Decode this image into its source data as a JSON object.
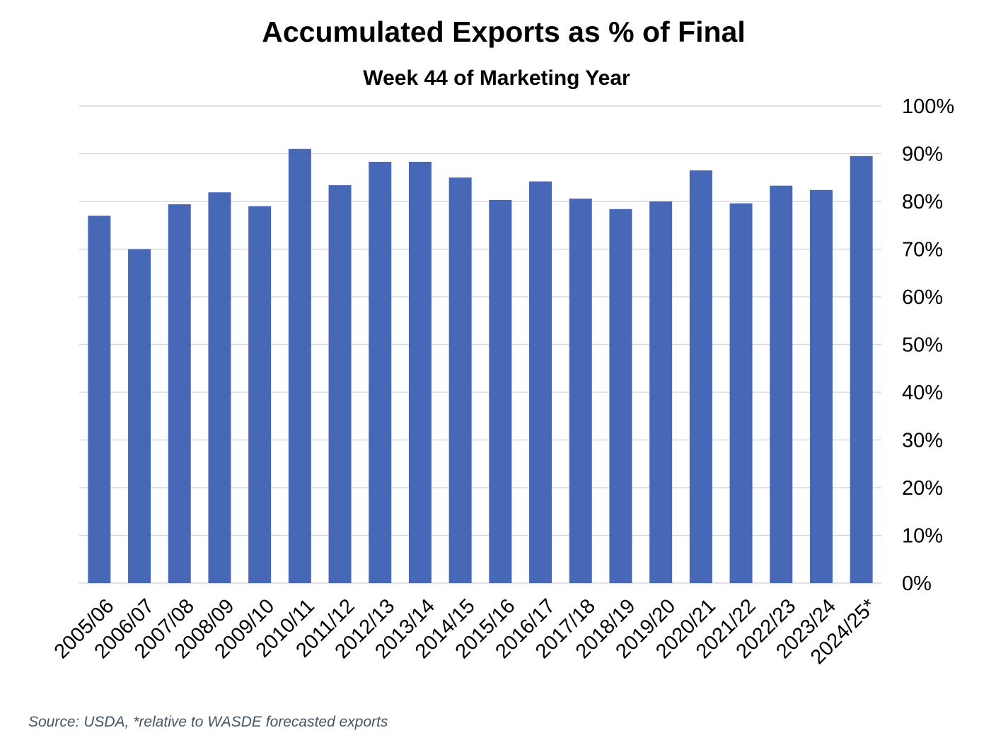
{
  "chart_data": {
    "type": "bar",
    "title": "Accumulated Exports as % of Final",
    "subtitle": "Week 44 of Marketing Year",
    "categories": [
      "2005/06",
      "2006/07",
      "2007/08",
      "2008/09",
      "2009/10",
      "2010/11",
      "2011/12",
      "2012/13",
      "2013/14",
      "2014/15",
      "2015/16",
      "2016/17",
      "2017/18",
      "2018/19",
      "2019/20",
      "2020/21",
      "2021/22",
      "2022/23",
      "2023/24",
      "2024/25*"
    ],
    "values": [
      77,
      70,
      79.4,
      81.9,
      79,
      91,
      83.4,
      88.3,
      88.3,
      85,
      80.3,
      84.2,
      80.6,
      78.4,
      80,
      86.5,
      79.6,
      83.3,
      82.4,
      89.5
    ],
    "y_ticks": [
      "0%",
      "10%",
      "20%",
      "30%",
      "40%",
      "50%",
      "60%",
      "70%",
      "80%",
      "90%",
      "100%"
    ],
    "ylim": [
      0,
      100
    ],
    "y_axis_side": "right",
    "grid": true,
    "legend": "none",
    "bar_color": "#4767b7",
    "source_note": "Source: USDA, *relative to WASDE forecasted exports"
  }
}
